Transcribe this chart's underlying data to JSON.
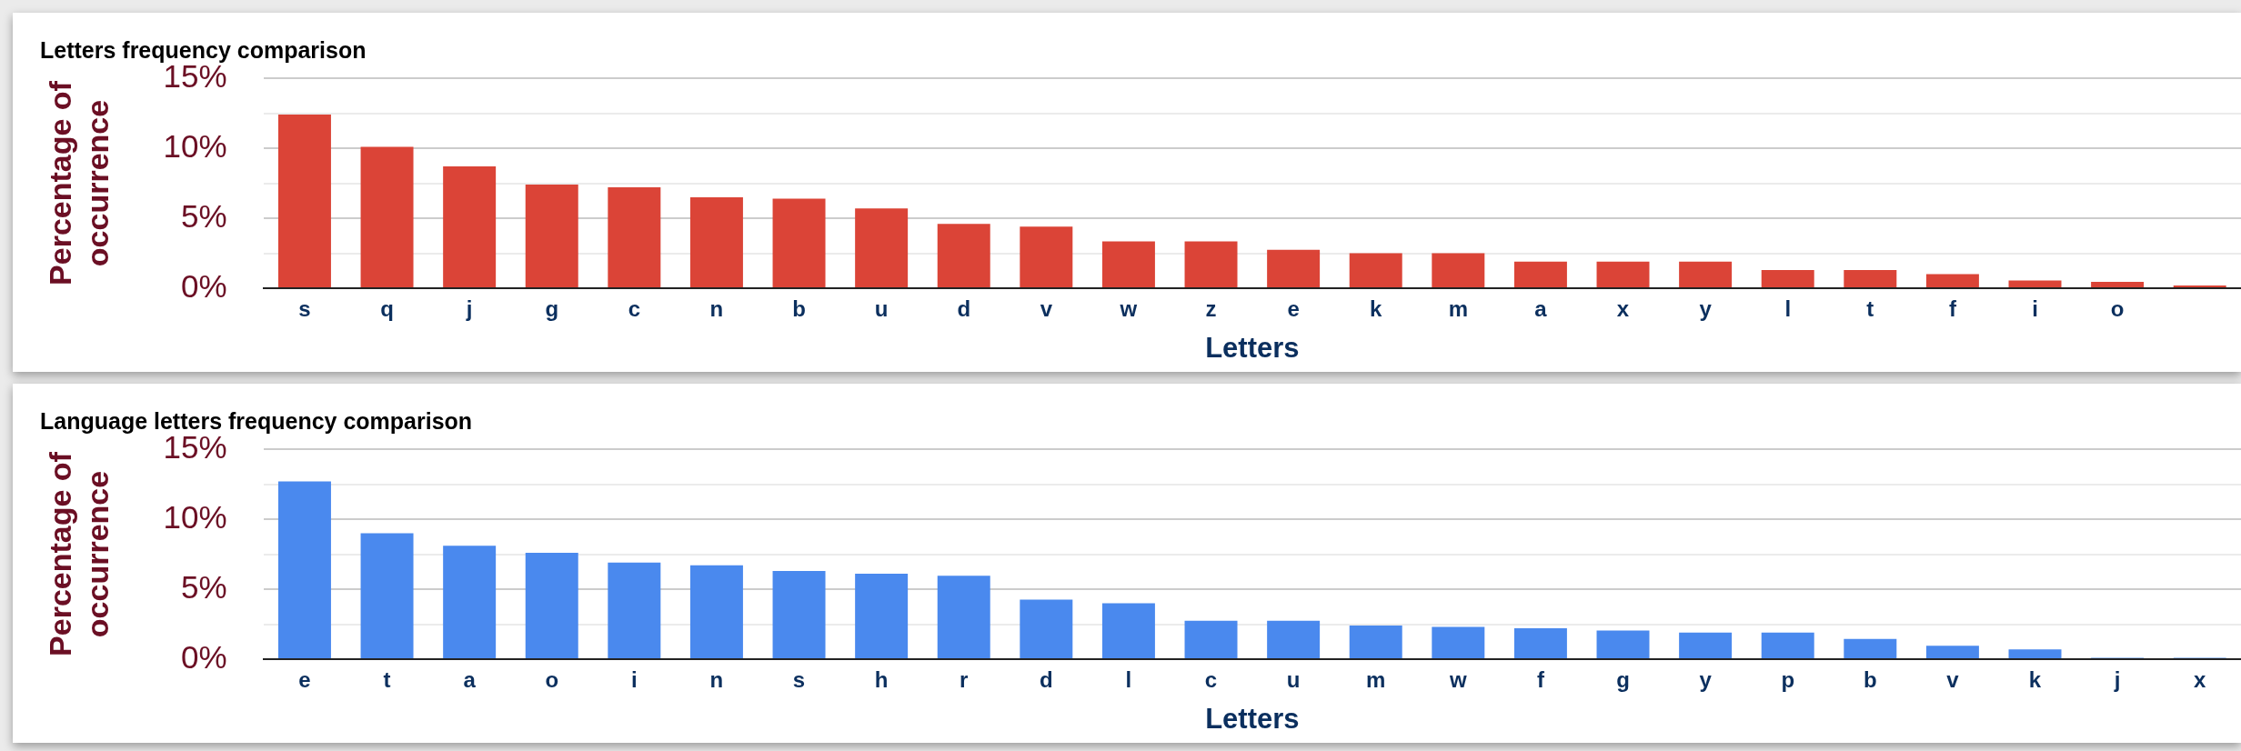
{
  "chart_data": [
    {
      "type": "bar",
      "title": "Letters frequency comparison",
      "xlabel": "Letters",
      "ylabel": "Percentage of occurrence",
      "categories": [
        "s",
        "q",
        "j",
        "g",
        "c",
        "n",
        "b",
        "u",
        "d",
        "v",
        "w",
        "z",
        "e",
        "k",
        "m",
        "a",
        "x",
        "y",
        "l",
        "t",
        "f",
        "i",
        "o",
        null
      ],
      "series": [
        {
          "color": "#db4437",
          "values": [
            12.4,
            10.1,
            8.7,
            7.4,
            7.2,
            6.5,
            6.4,
            5.7,
            4.6,
            4.4,
            3.35,
            3.35,
            2.75,
            2.5,
            2.5,
            1.9,
            1.9,
            1.9,
            1.3,
            1.3,
            1.0,
            0.55,
            0.45,
            0.2
          ]
        }
      ],
      "ylim": [
        0,
        15
      ],
      "yticks": [
        {
          "value": 0,
          "label": "0%"
        },
        {
          "value": 2.5,
          "label": null
        },
        {
          "value": 5,
          "label": "5%"
        },
        {
          "value": 7.5,
          "label": null
        },
        {
          "value": 10,
          "label": "10%"
        },
        {
          "value": 12.5,
          "label": null
        },
        {
          "value": 15,
          "label": "15%"
        }
      ],
      "grid": "y",
      "legend": false
    },
    {
      "type": "bar",
      "title": "Language letters frequency comparison",
      "xlabel": "Letters",
      "ylabel": "Percentage of occurrence",
      "categories": [
        "e",
        "t",
        "a",
        "o",
        "i",
        "n",
        "s",
        "h",
        "r",
        "d",
        "l",
        "c",
        "u",
        "m",
        "w",
        "f",
        "g",
        "y",
        "p",
        "b",
        "v",
        "k",
        "j",
        "x"
      ],
      "series": [
        {
          "color": "#4a89ee",
          "values": [
            12.7,
            9.0,
            8.1,
            7.6,
            6.9,
            6.7,
            6.3,
            6.1,
            5.95,
            4.25,
            4.0,
            2.75,
            2.75,
            2.4,
            2.3,
            2.2,
            2.05,
            1.9,
            1.9,
            1.45,
            0.95,
            0.7,
            0.1,
            0.1
          ]
        }
      ],
      "ylim": [
        0,
        15
      ],
      "yticks": [
        {
          "value": 0,
          "label": "0%"
        },
        {
          "value": 2.5,
          "label": null
        },
        {
          "value": 5,
          "label": "5%"
        },
        {
          "value": 7.5,
          "label": null
        },
        {
          "value": 10,
          "label": "10%"
        },
        {
          "value": 12.5,
          "label": null
        },
        {
          "value": 15,
          "label": "15%"
        }
      ],
      "grid": "y",
      "legend": false
    }
  ]
}
